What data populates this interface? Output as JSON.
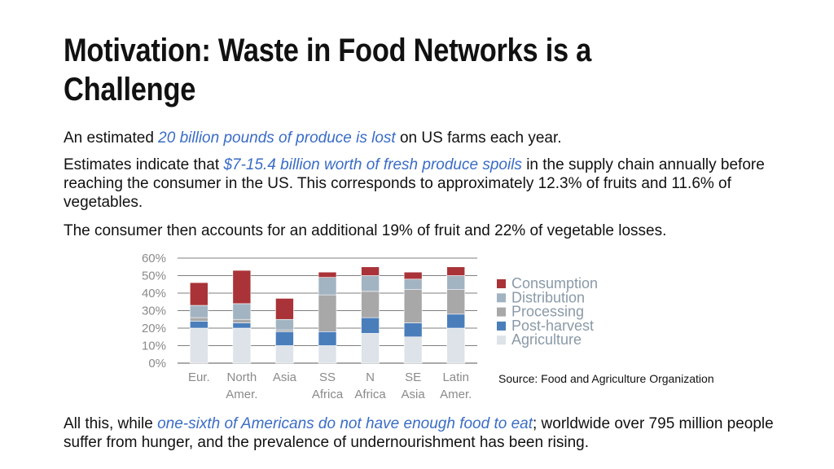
{
  "slide": {
    "title": "Motivation: Waste in Food Networks is a Challenge",
    "p1": {
      "pre": "An estimated ",
      "highlight": "20 billion pounds of produce is lost",
      "post": " on US farms each year."
    },
    "p2": {
      "pre": "Estimates indicate that ",
      "highlight": "$7-15.4 billion worth of fresh produce spoils",
      "post": " in the supply chain annually before reaching the consumer in the US. This corresponds to approximately 12.3% of fruits and 11.6% of vegetables."
    },
    "p3": {
      "text": "The consumer then accounts for an additional 19% of fruit and 22% of vegetable losses."
    },
    "p4": {
      "pre": "All this, while ",
      "highlight": "one-sixth of Americans do not have enough food to eat",
      "post": "; worldwide over 795 million people suffer from hunger, and the prevalence of undernourishment has been rising."
    },
    "source": "Source: Food and Agriculture Organization"
  },
  "chart_data": {
    "type": "bar",
    "stacked": true,
    "title": "",
    "xlabel": "",
    "ylabel": "",
    "ylim": [
      0,
      60
    ],
    "yticks": [
      "0%",
      "10%",
      "20%",
      "30%",
      "40%",
      "50%",
      "60%"
    ],
    "grid": true,
    "legend_position": "right",
    "categories": [
      [
        "Eur."
      ],
      [
        "North",
        "Amer."
      ],
      [
        "Asia"
      ],
      [
        "SS",
        "Africa"
      ],
      [
        "N",
        "Africa"
      ],
      [
        "SE",
        "Asia"
      ],
      [
        "Latin",
        "Amer."
      ]
    ],
    "series": [
      {
        "name": "Agriculture",
        "color": "#dde3e8",
        "values": [
          20,
          20,
          10,
          10,
          17,
          15,
          20
        ]
      },
      {
        "name": "Post-harvest",
        "color": "#4a7ebb",
        "values": [
          4,
          3,
          8,
          8,
          9,
          8,
          8
        ]
      },
      {
        "name": "Processing",
        "color": "#a8a8a8",
        "values": [
          2,
          2,
          1,
          21,
          15,
          19,
          14
        ]
      },
      {
        "name": "Distribution",
        "color": "#a2b4c2",
        "values": [
          7,
          9,
          6,
          10,
          9,
          6,
          8
        ]
      },
      {
        "name": "Consumption",
        "color": "#a93338",
        "values": [
          13,
          19,
          12,
          3,
          5,
          4,
          5
        ]
      }
    ]
  }
}
